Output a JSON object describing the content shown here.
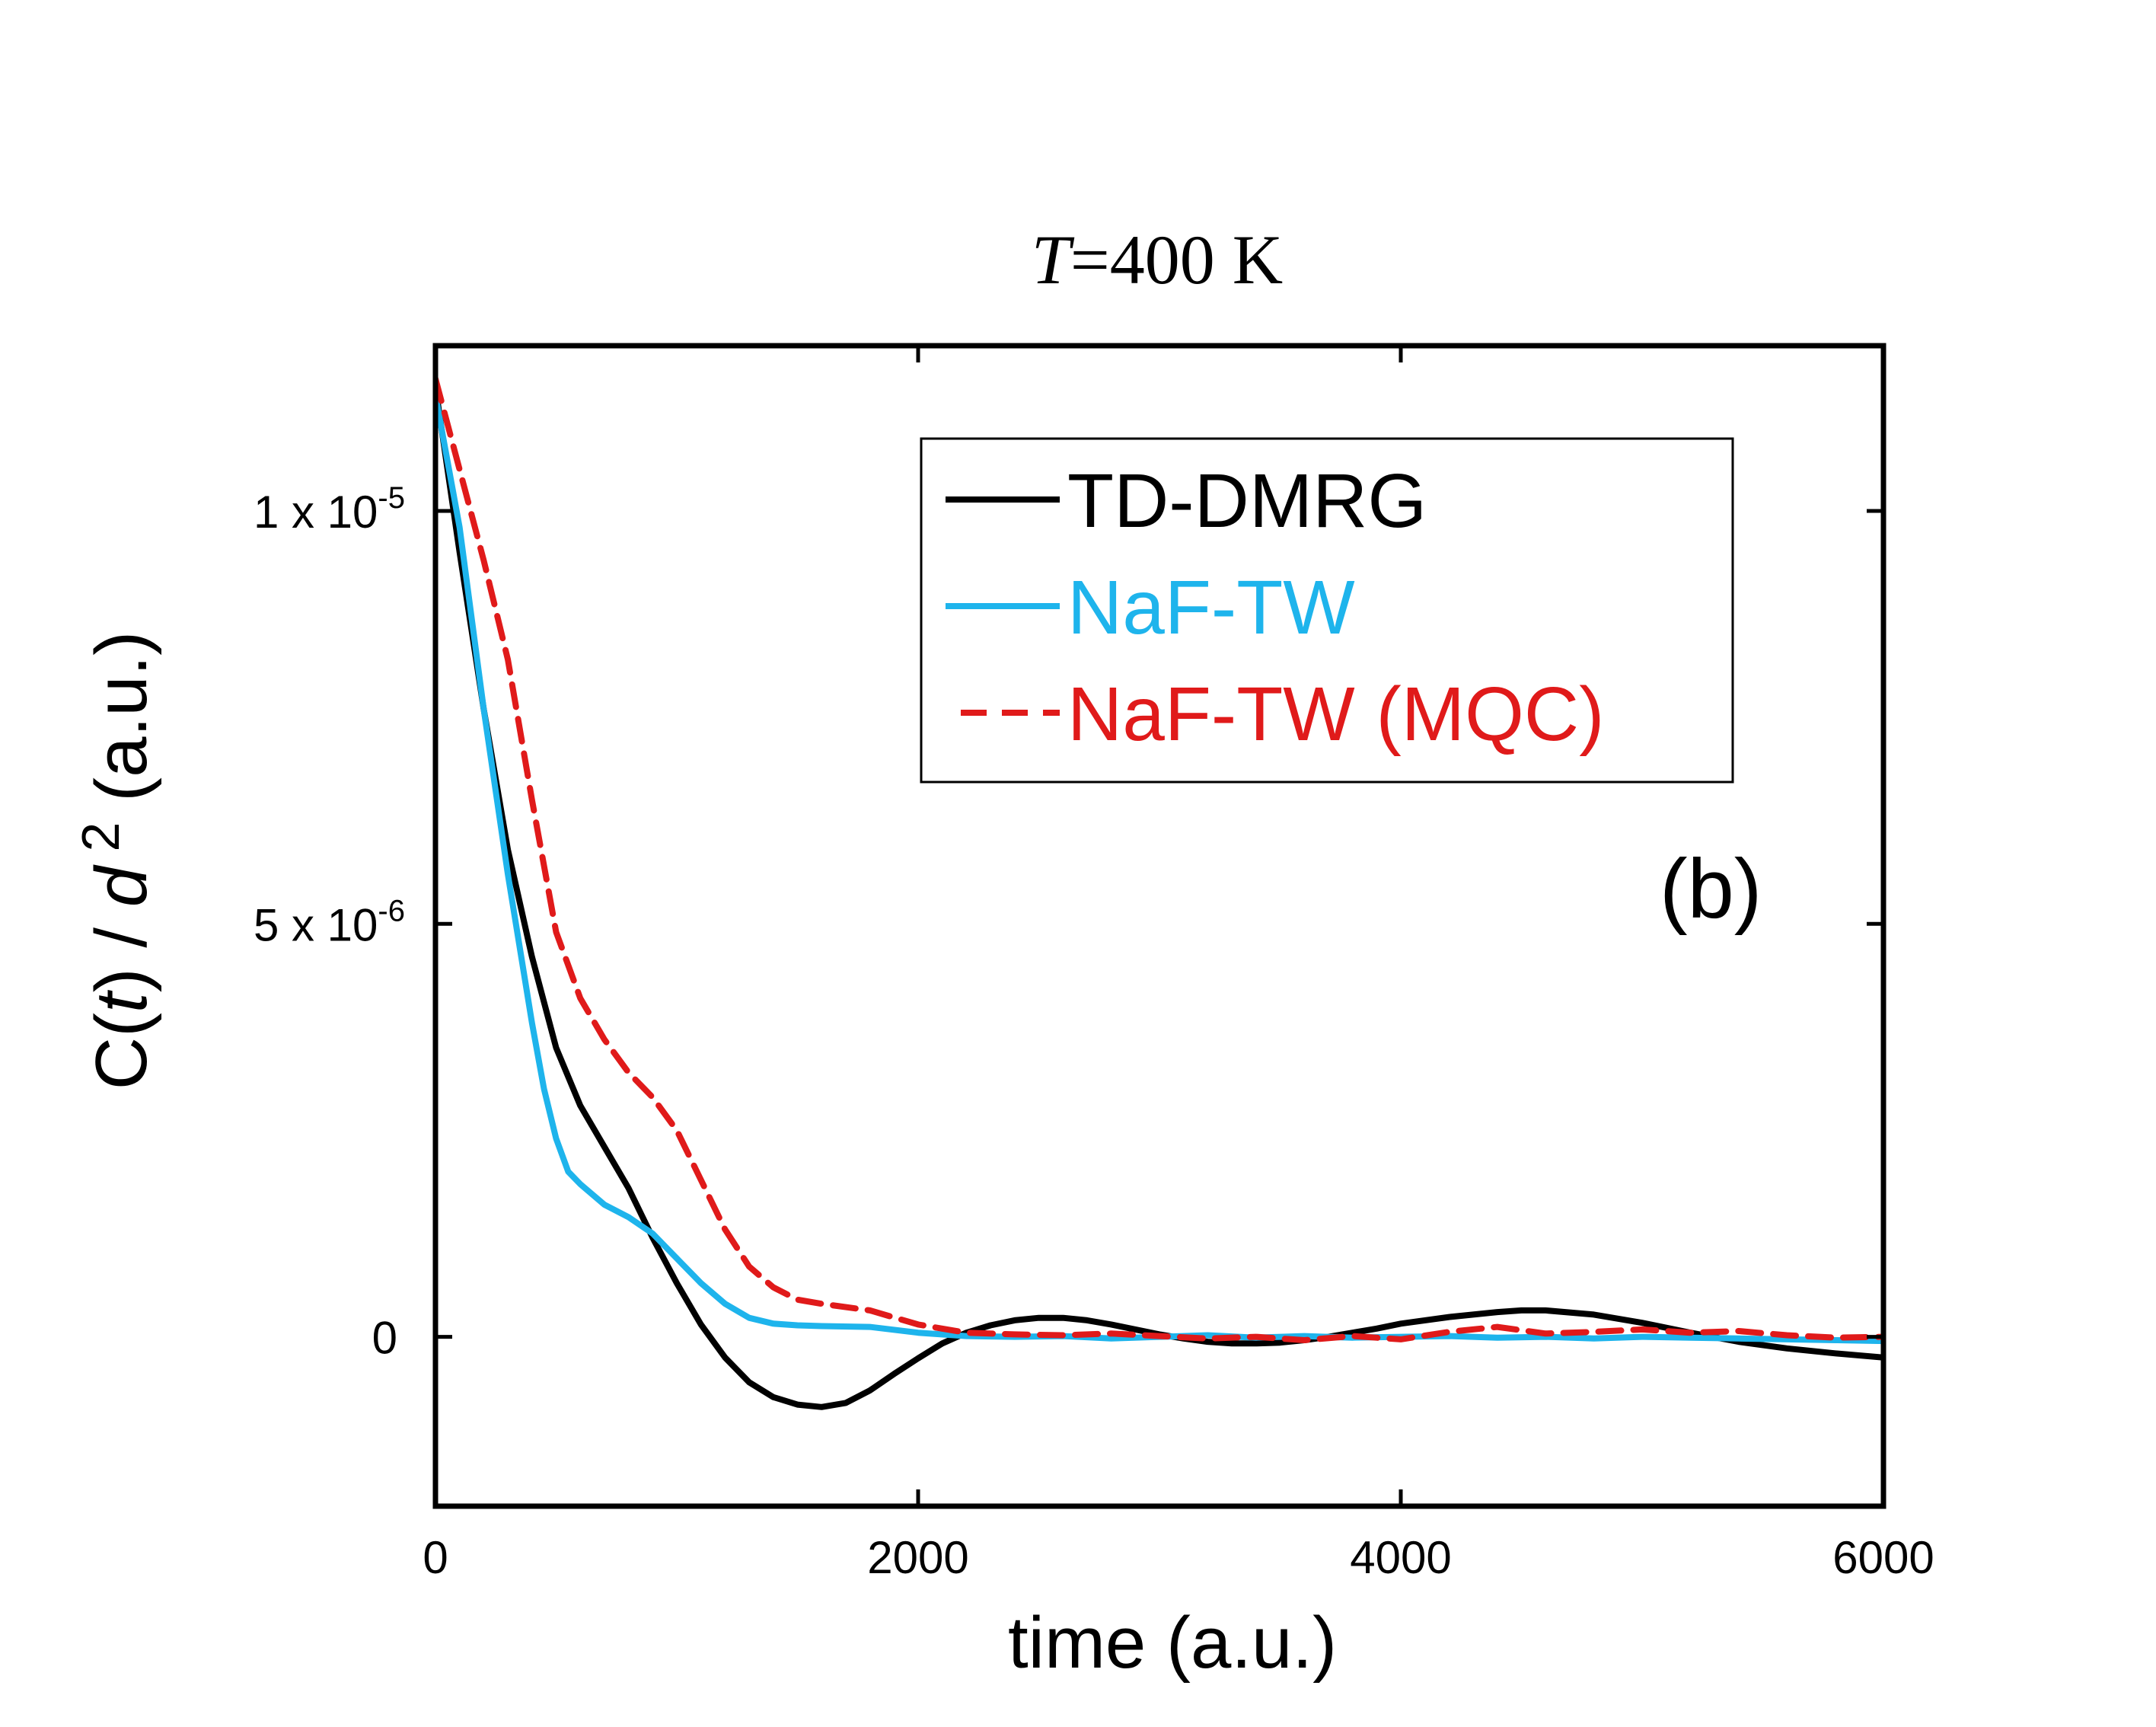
{
  "chart_data": {
    "type": "line",
    "title": {
      "italic": "T",
      "rest": "=400 K"
    },
    "xlabel": "time (a.u.)",
    "ylabel": {
      "p1": "C(",
      "p2": "t",
      "p3": ") / ",
      "p4": "d",
      "p5": " 2",
      "p6": " (a.u.)"
    },
    "xlim": [
      0,
      6000
    ],
    "ylim": [
      -2.05e-06,
      1.2e-05
    ],
    "xticks": [
      {
        "value": 0,
        "label": "0"
      },
      {
        "value": 2000,
        "label": "2000"
      },
      {
        "value": 4000,
        "label": "4000"
      },
      {
        "value": 6000,
        "label": "6000"
      }
    ],
    "yticks": [
      {
        "value": 1e-05,
        "mantissa": "1 x 10",
        "exp": "-5"
      },
      {
        "value": 5e-06,
        "mantissa": "5 x 10",
        "exp": "-6"
      },
      {
        "value": 0,
        "mantissa": "0",
        "exp": ""
      }
    ],
    "panel_label": "(b)",
    "legend": {
      "position": "top-right"
    },
    "series": [
      {
        "name": "TD-DMRG",
        "color": "#000000",
        "dash": "solid",
        "x": [
          0,
          100,
          200,
          300,
          400,
          500,
          600,
          700,
          800,
          900,
          1000,
          1100,
          1200,
          1300,
          1400,
          1500,
          1600,
          1700,
          1800,
          1900,
          2000,
          2100,
          2200,
          2300,
          2400,
          2500,
          2600,
          2700,
          2800,
          2900,
          3000,
          3100,
          3200,
          3300,
          3400,
          3500,
          3600,
          3700,
          3800,
          3900,
          4000,
          4200,
          4400,
          4500,
          4600,
          4800,
          5000,
          5200,
          5400,
          5600,
          5800,
          6000
        ],
        "y": [
          1.15e-05,
          9.5e-06,
          7.6e-06,
          5.9e-06,
          4.6e-06,
          3.5e-06,
          2.8e-06,
          2.3e-06,
          1.8e-06,
          1.2e-06,
          6.5e-07,
          1.5e-07,
          -2.5e-07,
          -5.5e-07,
          -7.3e-07,
          -8.2e-07,
          -8.5e-07,
          -8e-07,
          -6.5e-07,
          -4.5e-07,
          -2.6e-07,
          -8e-08,
          5e-08,
          1.4e-07,
          2e-07,
          2.3e-07,
          2.3e-07,
          2e-07,
          1.5e-07,
          9e-08,
          3e-08,
          -2e-08,
          -6e-08,
          -8e-08,
          -8e-08,
          -7e-08,
          -4e-08,
          0,
          5e-08,
          1e-07,
          1.6e-07,
          2.4e-07,
          3e-07,
          3.2e-07,
          3.2e-07,
          2.7e-07,
          1.7e-07,
          5e-08,
          -6e-08,
          -1.4e-07,
          -2e-07,
          -2.5e-07
        ]
      },
      {
        "name": "NaF-TW",
        "color": "#1EB4EC",
        "dash": "solid",
        "x": [
          0,
          100,
          200,
          300,
          400,
          450,
          500,
          550,
          600,
          700,
          800,
          900,
          1000,
          1100,
          1200,
          1300,
          1400,
          1500,
          1600,
          1800,
          2000,
          2200,
          2400,
          2600,
          2800,
          3000,
          3200,
          3400,
          3600,
          3800,
          4000,
          4200,
          4400,
          4600,
          4800,
          5000,
          5200,
          5400,
          5600,
          5800,
          6000
        ],
        "y": [
          1.14e-05,
          9.8e-06,
          7.6e-06,
          5.6e-06,
          3.8e-06,
          3e-06,
          2.4e-06,
          2e-06,
          1.85e-06,
          1.6e-06,
          1.45e-06,
          1.25e-06,
          9.5e-07,
          6.5e-07,
          4e-07,
          2.3e-07,
          1.6e-07,
          1.4e-07,
          1.3e-07,
          1.2e-07,
          5e-08,
          1e-08,
          0,
          1e-08,
          -2e-08,
          0,
          2e-08,
          -1e-08,
          1e-08,
          -1e-08,
          0,
          1e-08,
          -1e-08,
          0,
          -2e-08,
          0,
          -1e-08,
          -2e-08,
          -3e-08,
          -4e-08,
          -5e-08
        ]
      },
      {
        "name": "NaF-TW (MQC)",
        "color": "#E01A1A",
        "dash": "dashed",
        "x": [
          0,
          100,
          200,
          300,
          400,
          500,
          600,
          700,
          800,
          900,
          1000,
          1100,
          1200,
          1300,
          1400,
          1500,
          1600,
          1800,
          2000,
          2200,
          2400,
          2600,
          2800,
          3000,
          3200,
          3400,
          3600,
          3800,
          4000,
          4200,
          4400,
          4600,
          4800,
          5000,
          5200,
          5400,
          5600,
          5800,
          6000
        ],
        "y": [
          1.16e-05,
          1.05e-05,
          9.4e-06,
          8.2e-06,
          6.5e-06,
          4.9e-06,
          4.1e-06,
          3.6e-06,
          3.2e-06,
          2.9e-06,
          2.5e-06,
          1.9e-06,
          1.3e-06,
          8.5e-07,
          6e-07,
          4.5e-07,
          4e-07,
          3.2e-07,
          1.5e-07,
          5e-08,
          3e-08,
          2e-08,
          4e-08,
          1e-08,
          -2e-08,
          0,
          -4e-08,
          1e-08,
          -3e-08,
          6e-08,
          1.2e-07,
          4e-08,
          6e-08,
          9e-08,
          5e-08,
          7e-08,
          2e-08,
          -1e-08,
          0
        ]
      }
    ]
  }
}
